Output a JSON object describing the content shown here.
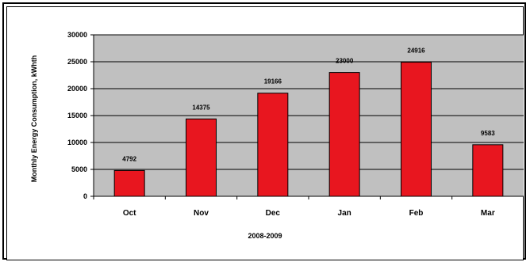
{
  "chart_data": {
    "type": "bar",
    "categories": [
      "Oct",
      "Nov",
      "Dec",
      "Jan",
      "Feb",
      "Mar"
    ],
    "values": [
      4792,
      14375,
      19166,
      23000,
      24916,
      9583
    ],
    "data_labels": [
      "4792",
      "14375",
      "19166",
      "23000",
      "24916",
      "9583"
    ],
    "title": "",
    "xlabel": "2008-2009",
    "ylabel": "Monthly Energy Consumption, kWhth",
    "ylim": [
      0,
      30000
    ],
    "yticks": [
      0,
      5000,
      10000,
      15000,
      20000,
      25000,
      30000
    ],
    "ytick_labels": [
      "0",
      "5000",
      "10000",
      "15000",
      "20000",
      "25000",
      "30000"
    ],
    "grid": true,
    "legend": "none",
    "colors": {
      "bar": "#e8161f",
      "bar_edge": "#000000",
      "plot_background": "#c0c0c0",
      "gridline": "#000000"
    }
  }
}
